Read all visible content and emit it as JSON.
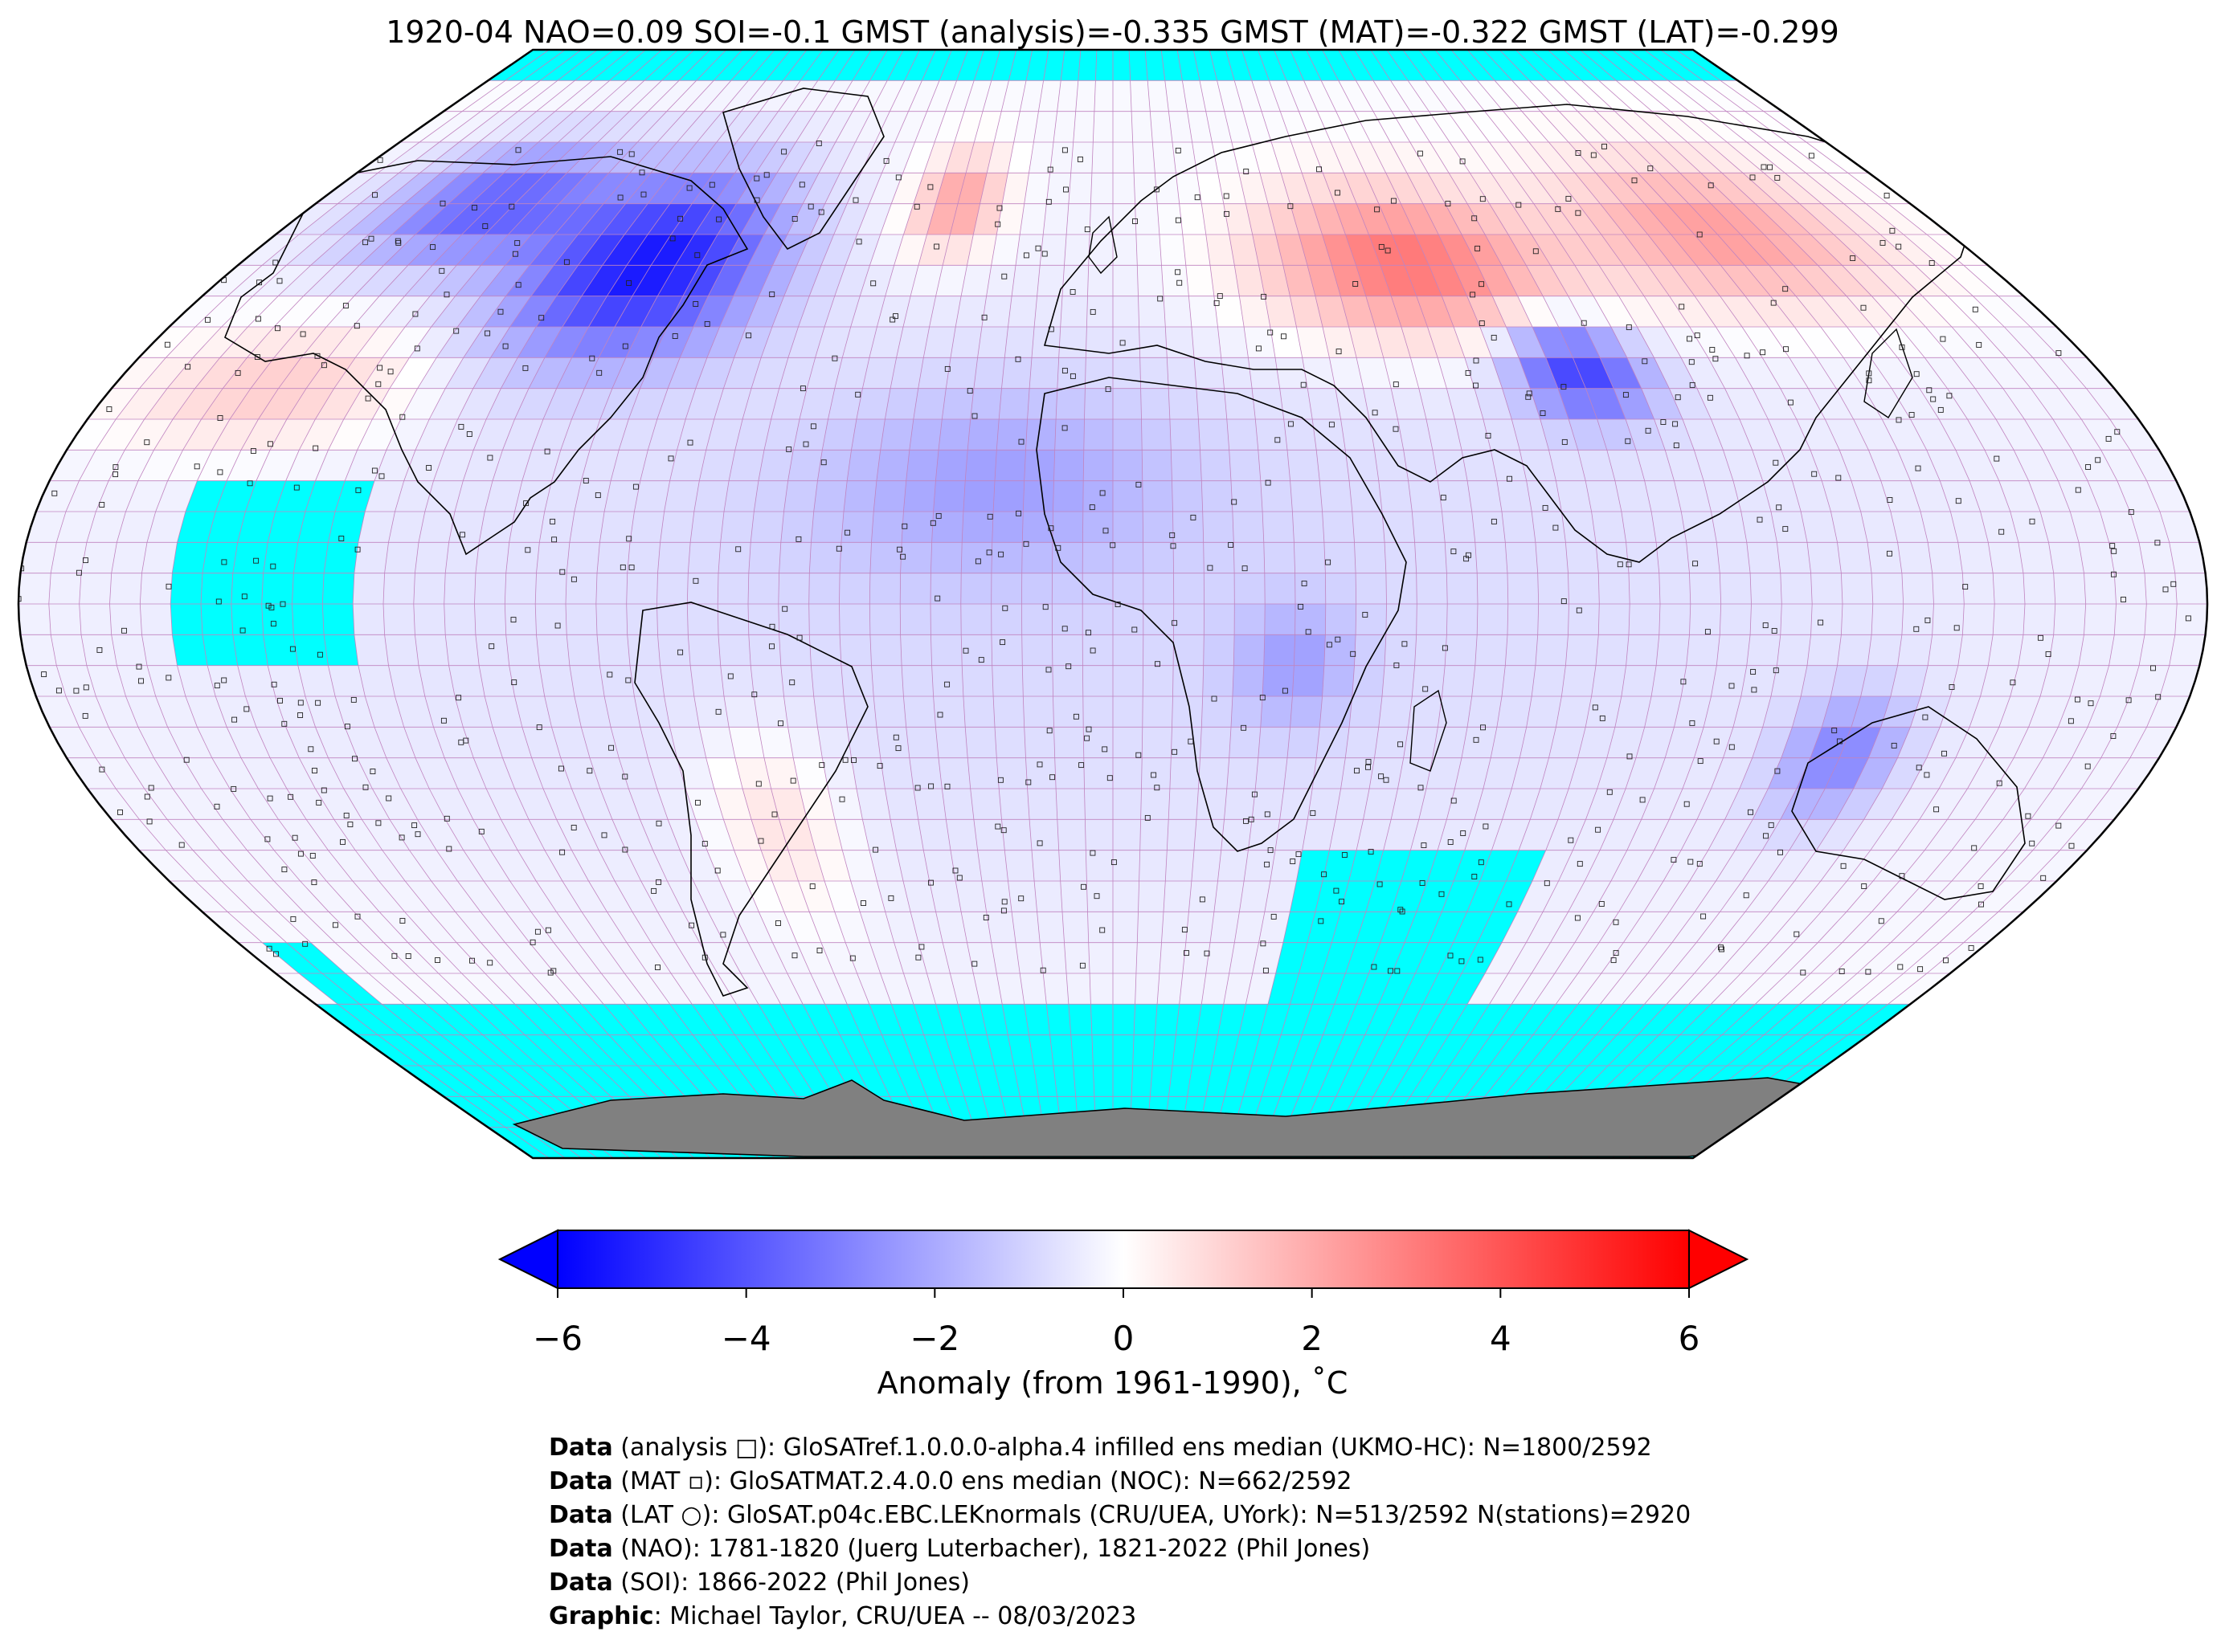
{
  "title": "1920-04 NAO=0.09 SOI=-0.1 GMST (analysis)=-0.335 GMST (MAT)=-0.322 GMST (LAT)=-0.299",
  "colorbar": {
    "ticks": [
      "−6",
      "−4",
      "−2",
      "0",
      "2",
      "4",
      "6"
    ],
    "tick_values": [
      -6,
      -4,
      -2,
      0,
      2,
      4,
      6
    ],
    "label": "Anomaly (from 1961-1990), ˚C",
    "colors": {
      "min": "#0000ff",
      "mid": "#ffffff",
      "max": "#ff0000"
    }
  },
  "map": {
    "projection": "Robinson",
    "missing_color": "#00ffff",
    "land_ice_color": "#808080",
    "grid_color": "#c084c0"
  },
  "credits": [
    {
      "label": "Data",
      "text": " (analysis □): GloSATref.1.0.0.0-alpha.4 infilled ens median (UKMO-HC): N=1800/2592"
    },
    {
      "label": "Data",
      "text": " (MAT ▫): GloSATMAT.2.4.0.0 ens median (NOC): N=662/2592"
    },
    {
      "label": "Data",
      "text": " (LAT ○): GloSAT.p04c.EBC.LEKnormals (CRU/UEA, UYork): N=513/2592 N(stations)=2920"
    },
    {
      "label": "Data",
      "text": " (NAO): 1781-1820 (Juerg Luterbacher), 1821-2022 (Phil Jones)"
    },
    {
      "label": "Data",
      "text": " (SOI): 1866-2022 (Phil Jones)"
    },
    {
      "label": "Graphic",
      "text": ": Michael Taylor, CRU/UEA -- 08/03/2023"
    }
  ]
}
